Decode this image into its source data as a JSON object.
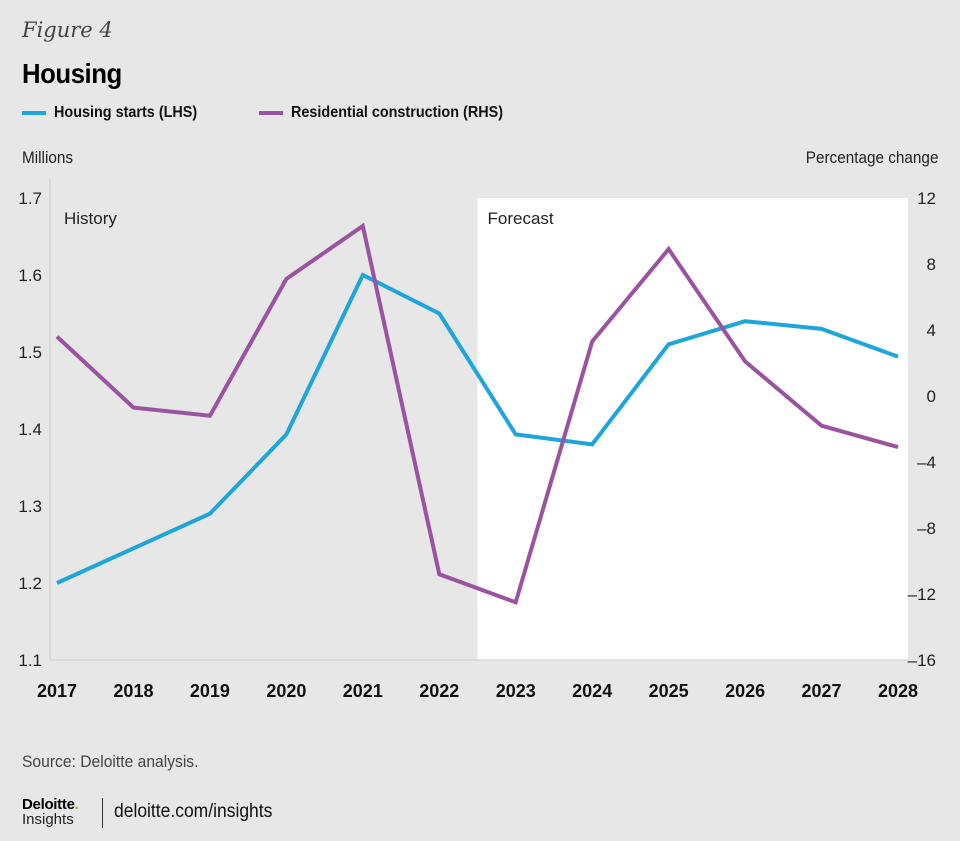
{
  "figure_label": "Figure 4",
  "title": "Housing",
  "legend": [
    {
      "label": "Housing starts (LHS)",
      "color": "#1ea5db"
    },
    {
      "label": "Residential construction (RHS)",
      "color": "#9a53a0"
    }
  ],
  "source": "Source: Deloitte analysis.",
  "brand": {
    "name": "Deloitte",
    "dot": ".",
    "sub": "Insights",
    "url": "deloitte.com/insights",
    "dot_color": "#86bc25"
  },
  "colors": {
    "background": "#e6e7e6",
    "forecast_region": "#ffffff",
    "housing_starts": "#1ea5db",
    "residential_construction": "#9a53a0"
  },
  "chart_data": {
    "type": "line",
    "title": "Housing",
    "categories": [
      "2017",
      "2018",
      "2019",
      "2020",
      "2021",
      "2022",
      "2023",
      "2024",
      "2025",
      "2026",
      "2027",
      "2028"
    ],
    "ylabel_left": "Millions",
    "ylabel_right": "Percentage change",
    "ylim_left": [
      1.1,
      1.7
    ],
    "yticks_left": [
      "1.7",
      "1.6",
      "1.5",
      "1.4",
      "1.3",
      "1.2",
      "1.1"
    ],
    "ylim_right": [
      -16,
      12
    ],
    "yticks_right": [
      "12",
      "8",
      "4",
      "0",
      "–4",
      "–8",
      "–12",
      "–16"
    ],
    "grid": false,
    "legend_position": "top-left",
    "regions": [
      {
        "label": "History",
        "from": "2017",
        "to": "2022.5",
        "shaded": false
      },
      {
        "label": "Forecast",
        "from": "2022.5",
        "to": "2028",
        "shaded": true
      }
    ],
    "series": [
      {
        "name": "Housing starts (LHS)",
        "axis": "left",
        "values": [
          1.2,
          1.245,
          1.29,
          1.393,
          1.6,
          1.55,
          1.393,
          1.38,
          1.51,
          1.54,
          1.53,
          1.494
        ]
      },
      {
        "name": "Residential construction (RHS)",
        "axis": "right",
        "values": [
          3.6,
          -0.7,
          -1.2,
          7.1,
          10.3,
          -10.8,
          -12.5,
          3.3,
          8.9,
          2.1,
          -1.8,
          -3.1
        ]
      }
    ]
  }
}
